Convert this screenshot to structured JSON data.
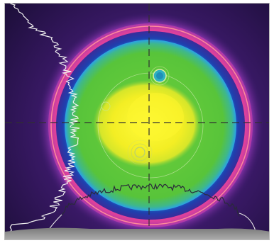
{
  "image": {
    "kind": "laser beam intensity profile",
    "colors": {
      "background_edge": "#1e0f3c",
      "halo": "#6a2f9a",
      "outer_ring": "#e0419a",
      "ring_highlight": "#ff7a96",
      "mid_ring": "#1f3fae",
      "cyan_band": "#2aa3e6",
      "plateau": "#58c43a",
      "hot_core": "#f3ee24",
      "crosshair": "#303030",
      "profile_trace": "#f0f0f0",
      "base_strip": "#9a9a9a"
    },
    "profiles": [
      "horizontal-profile",
      "vertical-profile"
    ]
  }
}
